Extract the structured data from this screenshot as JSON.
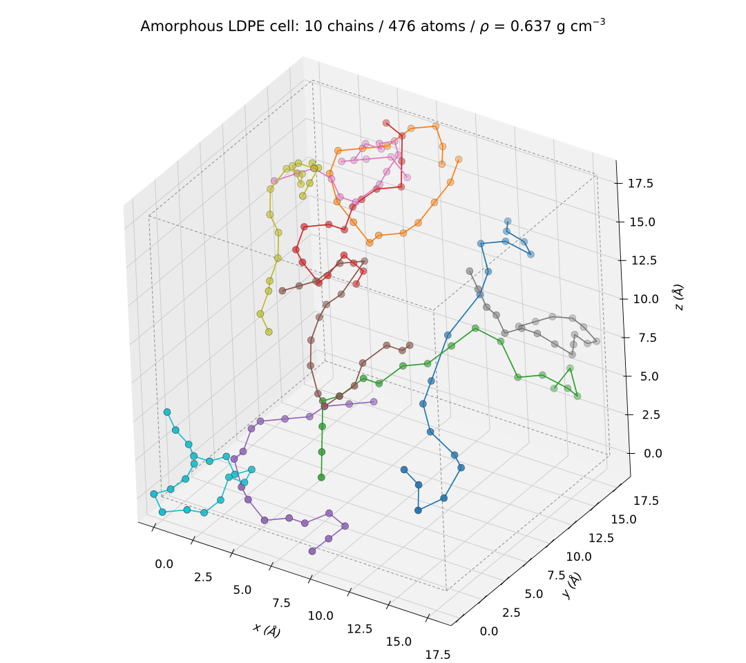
{
  "chart_data": {
    "type": "scatter",
    "subtype": "3d-line-scatter",
    "title": {
      "main": "Amorphous LDPE cell: 10 chains / 476 atoms / ",
      "rho": "ρ",
      "eq": " = 0.637 g cm",
      "exp": "−3"
    },
    "xlabel": "x (Å)",
    "ylabel": "y (Å)",
    "zlabel": "z (Å)",
    "xlim": [
      -1,
      19
    ],
    "ylim": [
      -1,
      19
    ],
    "zlim": [
      -1.5,
      19
    ],
    "box": {
      "min": [
        0,
        0,
        0
      ],
      "max": [
        18.2,
        18.2,
        18.2
      ]
    },
    "grid": true,
    "x_ticks": [
      "0.0",
      "2.5",
      "5.0",
      "7.5",
      "10.0",
      "12.5",
      "15.0",
      "17.5"
    ],
    "y_ticks": [
      "0.0",
      "2.5",
      "5.0",
      "7.5",
      "10.0",
      "12.5",
      "15.0",
      "17.5"
    ],
    "z_ticks": [
      "0.0",
      "2.5",
      "5.0",
      "7.5",
      "10.0",
      "12.5",
      "15.0",
      "17.5"
    ],
    "series": [
      {
        "color": "#1f77b4",
        "points": [
          [
            14,
            3,
            5
          ],
          [
            15.5,
            2,
            5
          ],
          [
            16,
            1,
            4
          ],
          [
            16.5,
            3,
            4
          ],
          [
            16.5,
            5,
            5
          ],
          [
            15.5,
            6,
            5
          ],
          [
            14,
            6,
            6
          ],
          [
            13,
            7,
            7
          ],
          [
            13,
            8,
            8
          ],
          [
            13,
            10,
            10
          ],
          [
            14,
            12,
            12
          ],
          [
            14,
            13,
            13
          ],
          [
            13,
            14,
            14
          ],
          [
            14,
            15,
            14
          ],
          [
            15,
            16,
            13
          ],
          [
            14,
            17,
            13
          ],
          [
            13.5,
            16,
            14
          ],
          [
            13,
            17,
            14
          ]
        ]
      },
      {
        "color": "#ff7f0e",
        "points": [
          [
            10,
            17,
            17
          ],
          [
            10,
            16,
            16
          ],
          [
            9.5,
            15,
            15
          ],
          [
            9,
            14,
            14
          ],
          [
            8,
            14,
            13
          ],
          [
            7,
            13,
            13
          ],
          [
            7,
            12,
            13
          ],
          [
            6,
            12,
            14
          ],
          [
            5,
            12,
            15
          ],
          [
            4,
            13,
            16
          ],
          [
            4,
            14,
            17
          ],
          [
            5,
            15,
            17
          ],
          [
            6,
            16,
            17
          ],
          [
            7,
            17,
            18
          ],
          [
            8,
            18,
            18
          ],
          [
            9,
            17,
            17.5
          ],
          [
            9.5,
            16,
            17
          ]
        ]
      },
      {
        "color": "#2ca02c",
        "points": [
          [
            8,
            4,
            2
          ],
          [
            7.5,
            5,
            3
          ],
          [
            7,
            6,
            4
          ],
          [
            6.5,
            7,
            5
          ],
          [
            7,
            8,
            5
          ],
          [
            8,
            9,
            6
          ],
          [
            9,
            9,
            6
          ],
          [
            10,
            10,
            7
          ],
          [
            11,
            11,
            7
          ],
          [
            12,
            12,
            8
          ],
          [
            13,
            13,
            9
          ],
          [
            14,
            14,
            8
          ],
          [
            15,
            14,
            6
          ],
          [
            16,
            15,
            6
          ],
          [
            17,
            16,
            5
          ],
          [
            17,
            17,
            4
          ],
          [
            16,
            18,
            5
          ],
          [
            15.5,
            17,
            4
          ]
        ]
      },
      {
        "color": "#d62728",
        "points": [
          [
            6,
            12,
            10
          ],
          [
            6.5,
            12,
            11
          ],
          [
            6.5,
            11,
            12
          ],
          [
            6.5,
            10,
            13
          ],
          [
            6,
            9,
            12
          ],
          [
            6,
            8,
            12
          ],
          [
            5,
            8,
            13
          ],
          [
            4,
            9,
            13
          ],
          [
            4,
            10,
            14
          ],
          [
            5,
            11,
            14
          ],
          [
            6,
            11,
            14
          ],
          [
            6,
            12,
            15
          ],
          [
            6,
            13,
            15
          ],
          [
            7,
            13,
            16
          ],
          [
            8,
            14,
            16
          ],
          [
            7.5,
            15,
            17
          ],
          [
            7,
            16,
            18
          ],
          [
            6,
            16,
            18.5
          ]
        ]
      },
      {
        "color": "#9467bd",
        "points": [
          [
            9,
            1,
            -1
          ],
          [
            9.5,
            2,
            -0.5
          ],
          [
            10,
            3,
            0
          ],
          [
            9,
            3,
            0.5
          ],
          [
            8,
            2,
            0
          ],
          [
            7,
            2,
            0
          ],
          [
            6,
            1,
            0
          ],
          [
            5,
            1,
            1
          ],
          [
            4,
            2,
            1
          ],
          [
            3,
            3,
            2
          ],
          [
            3,
            4,
            2
          ],
          [
            3,
            5,
            3
          ],
          [
            3,
            6,
            3
          ],
          [
            4,
            7,
            3
          ],
          [
            5,
            8,
            3
          ],
          [
            6,
            8,
            4
          ],
          [
            7,
            9,
            4
          ],
          [
            8,
            10,
            4
          ]
        ]
      },
      {
        "color": "#8c564b",
        "points": [
          [
            3,
            9,
            10
          ],
          [
            3.5,
            10,
            10
          ],
          [
            4,
            11,
            10
          ],
          [
            5,
            12,
            11
          ],
          [
            6,
            13,
            11
          ],
          [
            5,
            12,
            9
          ],
          [
            4,
            12,
            8
          ],
          [
            3.5,
            12,
            7
          ],
          [
            3.5,
            11,
            6
          ],
          [
            4,
            10,
            5
          ],
          [
            5,
            9,
            4
          ],
          [
            6,
            8,
            4
          ],
          [
            7,
            8,
            5
          ],
          [
            8,
            8,
            6
          ],
          [
            8,
            9,
            7
          ],
          [
            9,
            10,
            8
          ],
          [
            10,
            10,
            8
          ],
          [
            10.5,
            10,
            8.5
          ]
        ]
      },
      {
        "color": "#e377c2",
        "points": [
          [
            1,
            12,
            15
          ],
          [
            2.5,
            12,
            16
          ],
          [
            3,
            13,
            16
          ],
          [
            3.5,
            14,
            15
          ],
          [
            4,
            14,
            14
          ],
          [
            5,
            14,
            14
          ],
          [
            6,
            15,
            15
          ],
          [
            6.5,
            15,
            16
          ],
          [
            7,
            15.5,
            17
          ],
          [
            6.5,
            16,
            17.5
          ],
          [
            5.5,
            16,
            17
          ],
          [
            5,
            17,
            16
          ],
          [
            4,
            17,
            16
          ],
          [
            3.5,
            16.5,
            15
          ],
          [
            3,
            16,
            15
          ],
          [
            4,
            17,
            15
          ],
          [
            5,
            18,
            15
          ],
          [
            6,
            18,
            14
          ]
        ]
      },
      {
        "color": "#7f7f7f",
        "points": [
          [
            14,
            11,
            14
          ],
          [
            14.5,
            11,
            13
          ],
          [
            15,
            11,
            12
          ],
          [
            15,
            12,
            11
          ],
          [
            15.5,
            12,
            10
          ],
          [
            16,
            13,
            10
          ],
          [
            17,
            13,
            10
          ],
          [
            17.5,
            14,
            9
          ],
          [
            18,
            15,
            8
          ],
          [
            17.5,
            16,
            8
          ],
          [
            17,
            17,
            8
          ],
          [
            17.2,
            18,
            7
          ],
          [
            17.5,
            18.5,
            7
          ],
          [
            17,
            18,
            8
          ],
          [
            16,
            18.5,
            8
          ],
          [
            15,
            18,
            8
          ],
          [
            14.5,
            17,
            8
          ],
          [
            14,
            16,
            8
          ]
        ]
      },
      {
        "color": "#bcbd22",
        "points": [
          [
            4,
            10,
            16
          ],
          [
            4.5,
            10,
            17
          ],
          [
            4.5,
            11,
            17.5
          ],
          [
            3.5,
            12,
            17
          ],
          [
            3,
            13,
            16
          ],
          [
            2,
            13,
            16
          ],
          [
            1,
            14,
            15
          ],
          [
            1.5,
            14,
            14
          ],
          [
            1,
            15,
            14
          ],
          [
            0,
            15,
            14
          ],
          [
            -0.5,
            14,
            13
          ],
          [
            0,
            13,
            12
          ],
          [
            0.5,
            13,
            11
          ],
          [
            1,
            12,
            10
          ],
          [
            1,
            11,
            9
          ],
          [
            1.5,
            10,
            9
          ],
          [
            1.5,
            9,
            8
          ],
          [
            2,
            9,
            7
          ]
        ]
      },
      {
        "color": "#17becf",
        "points": [
          [
            0,
            1,
            5
          ],
          [
            0.5,
            1,
            4
          ],
          [
            1,
            1.5,
            3
          ],
          [
            1,
            2,
            2
          ],
          [
            2,
            2,
            2
          ],
          [
            2.5,
            3,
            2
          ],
          [
            3,
            3,
            1
          ],
          [
            3.5,
            4,
            1
          ],
          [
            3,
            4,
            0
          ],
          [
            2,
            4,
            0
          ],
          [
            2,
            3,
            -1
          ],
          [
            1.5,
            2,
            -1.5
          ],
          [
            1,
            1,
            -1
          ],
          [
            0,
            0,
            -1
          ],
          [
            -0.5,
            0,
            0
          ],
          [
            0,
            1,
            0
          ],
          [
            1,
            1,
            1
          ],
          [
            1,
            2,
            1.5
          ]
        ]
      }
    ]
  }
}
